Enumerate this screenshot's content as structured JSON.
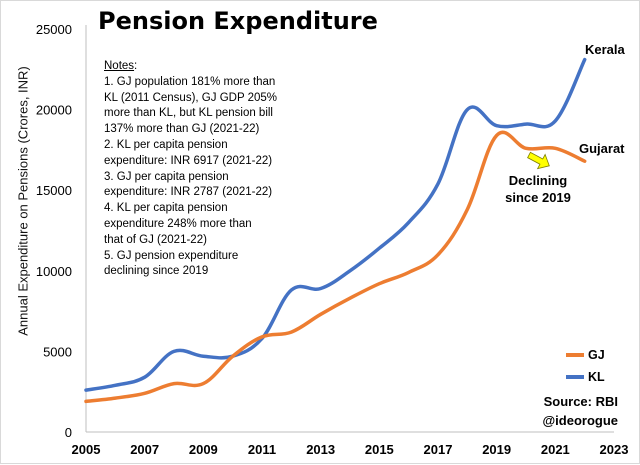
{
  "chart_data": {
    "type": "line",
    "title": "Pension Expenditure",
    "xlabel": "",
    "ylabel": "Annual Expenditure on Pensions (Crores, INR)",
    "xlim": [
      2005,
      2023
    ],
    "ylim": [
      0,
      25000
    ],
    "x_ticks": [
      2005,
      2007,
      2009,
      2011,
      2013,
      2015,
      2017,
      2019,
      2021,
      2023
    ],
    "y_ticks": [
      0,
      5000,
      10000,
      15000,
      20000,
      25000
    ],
    "grid": false,
    "series": [
      {
        "name": "KL",
        "label": "Kerala",
        "color": "#4472c4",
        "x": [
          2005,
          2006,
          2007,
          2008,
          2009,
          2010,
          2011,
          2012,
          2013,
          2014,
          2015,
          2016,
          2017,
          2018,
          2019,
          2020,
          2021,
          2022
        ],
        "values": [
          2600,
          2900,
          3400,
          5000,
          4700,
          4700,
          5800,
          8800,
          8900,
          10000,
          11400,
          13000,
          15400,
          20000,
          19000,
          19100,
          19300,
          23100
        ]
      },
      {
        "name": "GJ",
        "label": "Gujarat",
        "color": "#ed7d31",
        "x": [
          2005,
          2006,
          2007,
          2008,
          2009,
          2010,
          2011,
          2012,
          2013,
          2014,
          2015,
          2016,
          2017,
          2018,
          2019,
          2020,
          2021,
          2022
        ],
        "values": [
          1900,
          2100,
          2400,
          3000,
          3000,
          4700,
          5900,
          6200,
          7300,
          8300,
          9200,
          9900,
          11000,
          13800,
          18400,
          17600,
          17600,
          16800
        ]
      }
    ],
    "annotations": {
      "kerala": "Kerala",
      "gujarat": "Gujarat",
      "declining_1": "Declining",
      "declining_2": "since 2019"
    },
    "notes": {
      "heading": "Notes",
      "lines": [
        "1. GJ population 181% more than",
        "KL (2011 Census), GJ GDP 205%",
        "more than KL, but KL pension bill",
        "137% more than GJ (2021-22)",
        "2. KL per capita pension",
        "expenditure: INR 6917 (2021-22)",
        "3. GJ per capita pension",
        "expenditure: INR 2787 (2021-22)",
        "4. KL per capita pension",
        "expenditure 248% more than",
        "that of GJ (2021-22)",
        "5. GJ pension expenditure",
        "declining since 2019"
      ]
    },
    "legend": {
      "placement": "bottom-right",
      "entries": [
        "GJ",
        "KL"
      ]
    },
    "source": {
      "line1": "Source: RBI",
      "line2": "@ideorogue"
    },
    "arrow_color": "#ffff00"
  }
}
